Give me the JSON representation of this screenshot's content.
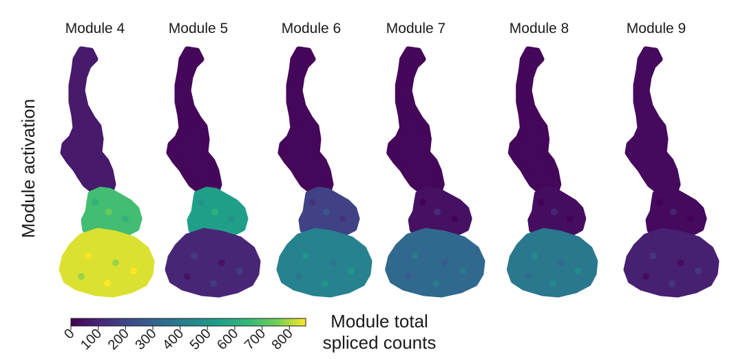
{
  "chart_data": {
    "type": "scatter",
    "ylabel": "Module activation",
    "panels": [
      {
        "title": "Module 4",
        "upper_level": 0.08,
        "mid_level": 0.78,
        "lower_level": 0.97
      },
      {
        "title": "Module 5",
        "upper_level": 0.02,
        "mid_level": 0.63,
        "lower_level": 0.12
      },
      {
        "title": "Module 6",
        "upper_level": 0.02,
        "mid_level": 0.22,
        "lower_level": 0.5
      },
      {
        "title": "Module 7",
        "upper_level": 0.02,
        "mid_level": 0.05,
        "lower_level": 0.38
      },
      {
        "title": "Module 8",
        "upper_level": 0.02,
        "mid_level": 0.04,
        "lower_level": 0.45
      },
      {
        "title": "Module 9",
        "upper_level": 0.03,
        "mid_level": 0.03,
        "lower_level": 0.1
      }
    ],
    "colorbar": {
      "title_line1": "Module total",
      "title_line2": "spliced counts",
      "min": 0,
      "max": 860,
      "ticks": [
        "0",
        "100",
        "200",
        "300",
        "400",
        "500",
        "600",
        "700",
        "800"
      ],
      "tick_values": [
        0,
        100,
        200,
        300,
        400,
        500,
        600,
        700,
        800
      ],
      "colormap": "viridis"
    }
  }
}
